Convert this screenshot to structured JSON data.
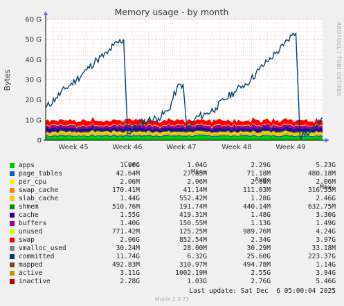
{
  "chart_data": {
    "type": "area",
    "title": "Memory usage - by month",
    "ylabel": "Bytes",
    "ylim": [
      0,
      60
    ],
    "y_ticks": [
      "0",
      "10 G",
      "20 G",
      "30 G",
      "40 G",
      "50 G",
      "60 G"
    ],
    "x_ticks": [
      "Week 45",
      "Week 46",
      "Week 47",
      "Week 48",
      "Week 49"
    ],
    "grid": true,
    "watermark": "RRDTOOL / TOBI OETIKER",
    "stack_units": "G",
    "stack": [
      {
        "name": "apps",
        "color": "#00cc00",
        "level": 1.9
      },
      {
        "name": "page_tables",
        "color": "#0066b3",
        "level": 0.6
      },
      {
        "name": "per_cpu",
        "color": "#ffee00",
        "level": 0.3
      },
      {
        "name": "swap_cache",
        "color": "#ff8000",
        "level": 0.3
      },
      {
        "name": "slab_cache",
        "color": "#ffcc00",
        "level": 1.0
      },
      {
        "name": "shmem",
        "color": "#008f00",
        "level": 0.4
      },
      {
        "name": "cache",
        "color": "#330099",
        "level": 1.6
      },
      {
        "name": "buffers",
        "color": "#990099",
        "level": 1.2
      },
      {
        "name": "unused",
        "color": "#ccff00",
        "level": 0.3
      },
      {
        "name": "swap",
        "color": "#ff0000",
        "level": 2.3
      }
    ],
    "committed": {
      "name": "committed",
      "color": "#00416c",
      "points": [
        [
          0,
          16
        ],
        [
          5,
          21
        ],
        [
          10,
          26
        ],
        [
          15,
          30
        ],
        [
          20,
          35
        ],
        [
          25,
          40
        ],
        [
          30,
          43
        ],
        [
          33,
          47
        ],
        [
          38,
          50
        ],
        [
          40,
          3
        ],
        [
          45,
          8
        ],
        [
          50,
          10
        ],
        [
          55,
          11
        ],
        [
          60,
          15
        ],
        [
          64,
          26
        ],
        [
          67,
          28
        ],
        [
          69,
          4
        ],
        [
          73,
          11
        ],
        [
          78,
          13
        ],
        [
          83,
          16
        ],
        [
          87,
          20
        ],
        [
          92,
          24
        ],
        [
          96,
          27
        ],
        [
          100,
          30
        ],
        [
          104,
          35
        ],
        [
          108,
          39
        ],
        [
          112,
          43
        ],
        [
          116,
          47
        ],
        [
          120,
          52
        ],
        [
          122,
          53
        ],
        [
          124,
          2
        ],
        [
          127,
          4
        ],
        [
          132,
          7
        ],
        [
          135,
          11
        ]
      ]
    },
    "series": [
      {
        "name": "apps",
        "color": "#00cc00",
        "cur": "1.90G",
        "min": "1.04G",
        "avg": "2.29G",
        "max": "5.23G"
      },
      {
        "name": "page_tables",
        "color": "#0066b3",
        "cur": "42.64M",
        "min": "27.85M",
        "avg": "71.18M",
        "max": "480.18M"
      },
      {
        "name": "per_cpu",
        "color": "#ffee00",
        "cur": "2.06M",
        "min": "2.06M",
        "avg": "2.06M",
        "max": "2.06M"
      },
      {
        "name": "swap_cache",
        "color": "#ff8000",
        "cur": "170.41M",
        "min": "41.14M",
        "avg": "111.03M",
        "max": "316.55M"
      },
      {
        "name": "slab_cache",
        "color": "#ffcc00",
        "cur": "1.44G",
        "min": "552.42M",
        "avg": "1.28G",
        "max": "2.46G"
      },
      {
        "name": "shmem",
        "color": "#008f00",
        "cur": "510.76M",
        "min": "191.74M",
        "avg": "440.14M",
        "max": "632.75M"
      },
      {
        "name": "cache",
        "color": "#330099",
        "cur": "1.55G",
        "min": "419.31M",
        "avg": "1.48G",
        "max": "3.30G"
      },
      {
        "name": "buffers",
        "color": "#990099",
        "cur": "1.40G",
        "min": "150.55M",
        "avg": "1.13G",
        "max": "1.49G"
      },
      {
        "name": "unused",
        "color": "#ccff00",
        "cur": "771.42M",
        "min": "125.25M",
        "avg": "989.76M",
        "max": "4.24G"
      },
      {
        "name": "swap",
        "color": "#ff0000",
        "cur": "2.06G",
        "min": "852.54M",
        "avg": "2.34G",
        "max": "3.97G"
      },
      {
        "name": "vmalloc_used",
        "color": "#808080",
        "cur": "30.24M",
        "min": "28.00M",
        "avg": "30.29M",
        "max": "33.18M"
      },
      {
        "name": "committed",
        "color": "#00416c",
        "cur": "11.74G",
        "min": "6.32G",
        "avg": "25.60G",
        "max": "223.37G"
      },
      {
        "name": "mapped",
        "color": "#8b4513",
        "cur": "492.83M",
        "min": "310.97M",
        "avg": "494.78M",
        "max": "1.14G"
      },
      {
        "name": "active",
        "color": "#c09a00",
        "cur": "3.11G",
        "min": "1002.19M",
        "avg": "2.55G",
        "max": "3.94G"
      },
      {
        "name": "inactive",
        "color": "#c00000",
        "cur": "2.28G",
        "min": "1.03G",
        "avg": "2.76G",
        "max": "5.46G"
      }
    ]
  },
  "legend": {
    "col_cur": "Cur:",
    "col_min": "Min:",
    "col_avg": "Avg:",
    "col_max": "Max:"
  },
  "last_update": "Last update: Sat Dec  6 05:00:04 2025",
  "footer": "Munin 2.0.73"
}
